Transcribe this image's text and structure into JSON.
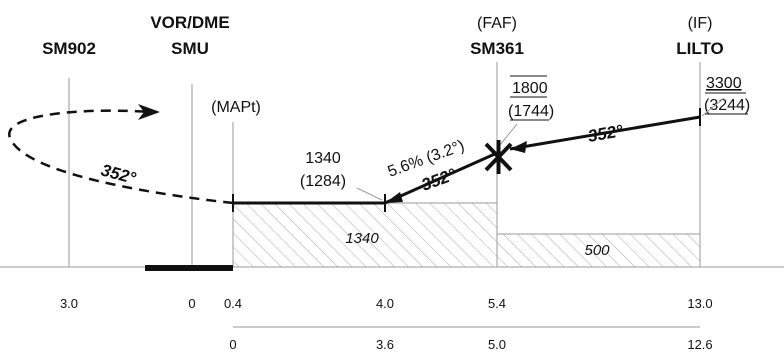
{
  "fixes": {
    "sm902": {
      "name": "SM902"
    },
    "smu": {
      "role": "VOR/DME",
      "name": "SMU"
    },
    "mapt": {
      "role": "(MAPt)"
    },
    "sm361": {
      "role": "(FAF)",
      "name": "SM361"
    },
    "lilto": {
      "role": "(IF)",
      "name": "LILTO"
    }
  },
  "altitudes": {
    "lilto": {
      "alt": "3300",
      "height": "(3244)"
    },
    "faf": {
      "alt": "1800",
      "height": "(1744)"
    },
    "sdf": {
      "alt": "1340",
      "height": "(1284)"
    }
  },
  "gradient": "5.6% (3.2°)",
  "courses": {
    "intermediate": "352°",
    "final": "352°",
    "missed": "352°"
  },
  "segment_altitudes": {
    "final": "1340",
    "intermediate": "500"
  },
  "distances_dme": [
    "3.0",
    "0",
    "0.4",
    "4.0",
    "5.4",
    "13.0"
  ],
  "distances_thr": [
    "0",
    "3.6",
    "5.0",
    "12.6"
  ],
  "colors": {
    "line": "#111111",
    "guide": "#9a9a9a",
    "hatch": "#a8a8a8"
  }
}
